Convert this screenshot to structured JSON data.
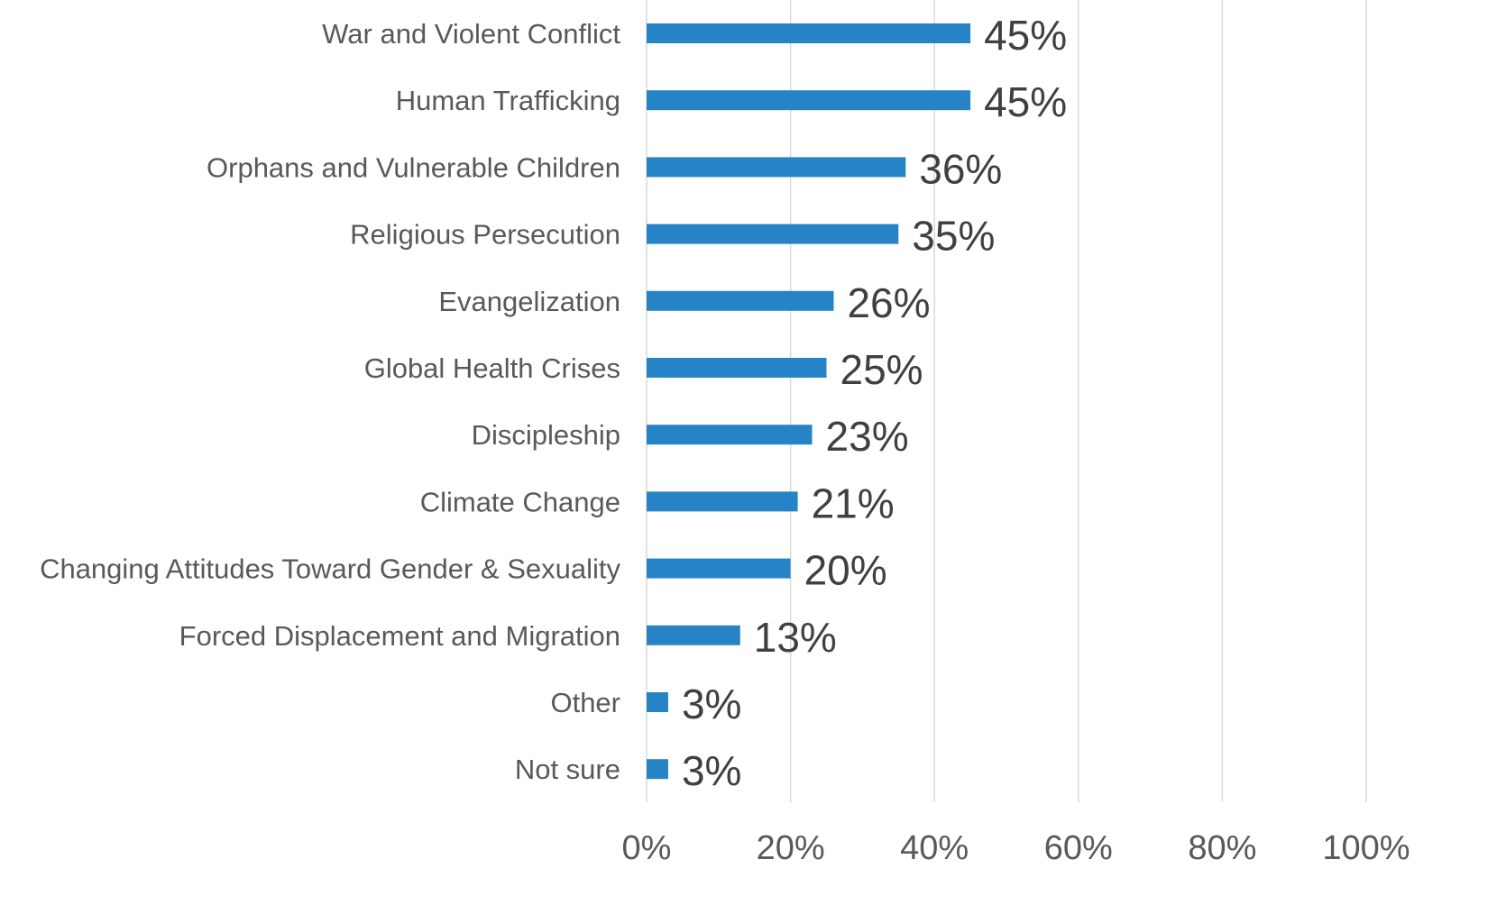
{
  "chart_data": {
    "type": "bar",
    "orientation": "horizontal",
    "categories": [
      "War and Violent Conflict",
      "Human Trafficking",
      "Orphans and Vulnerable Children",
      "Religious Persecution",
      "Evangelization",
      "Global Health Crises",
      "Discipleship",
      "Climate Change",
      "Changing Attitudes Toward Gender & Sexuality",
      "Forced Displacement and Migration",
      "Other",
      "Not sure"
    ],
    "values": [
      45,
      45,
      36,
      35,
      26,
      25,
      23,
      21,
      20,
      13,
      3,
      3
    ],
    "value_labels": [
      "45%",
      "45%",
      "36%",
      "35%",
      "26%",
      "25%",
      "23%",
      "21%",
      "20%",
      "13%",
      "3%",
      "3%"
    ],
    "xlim": [
      0,
      100
    ],
    "x_ticks": [
      0,
      20,
      40,
      60,
      80,
      100
    ],
    "x_tick_labels": [
      "0%",
      "20%",
      "40%",
      "60%",
      "80%",
      "100%"
    ],
    "grid": "vertical",
    "legend": "none",
    "bar_color": "#2683c6"
  }
}
